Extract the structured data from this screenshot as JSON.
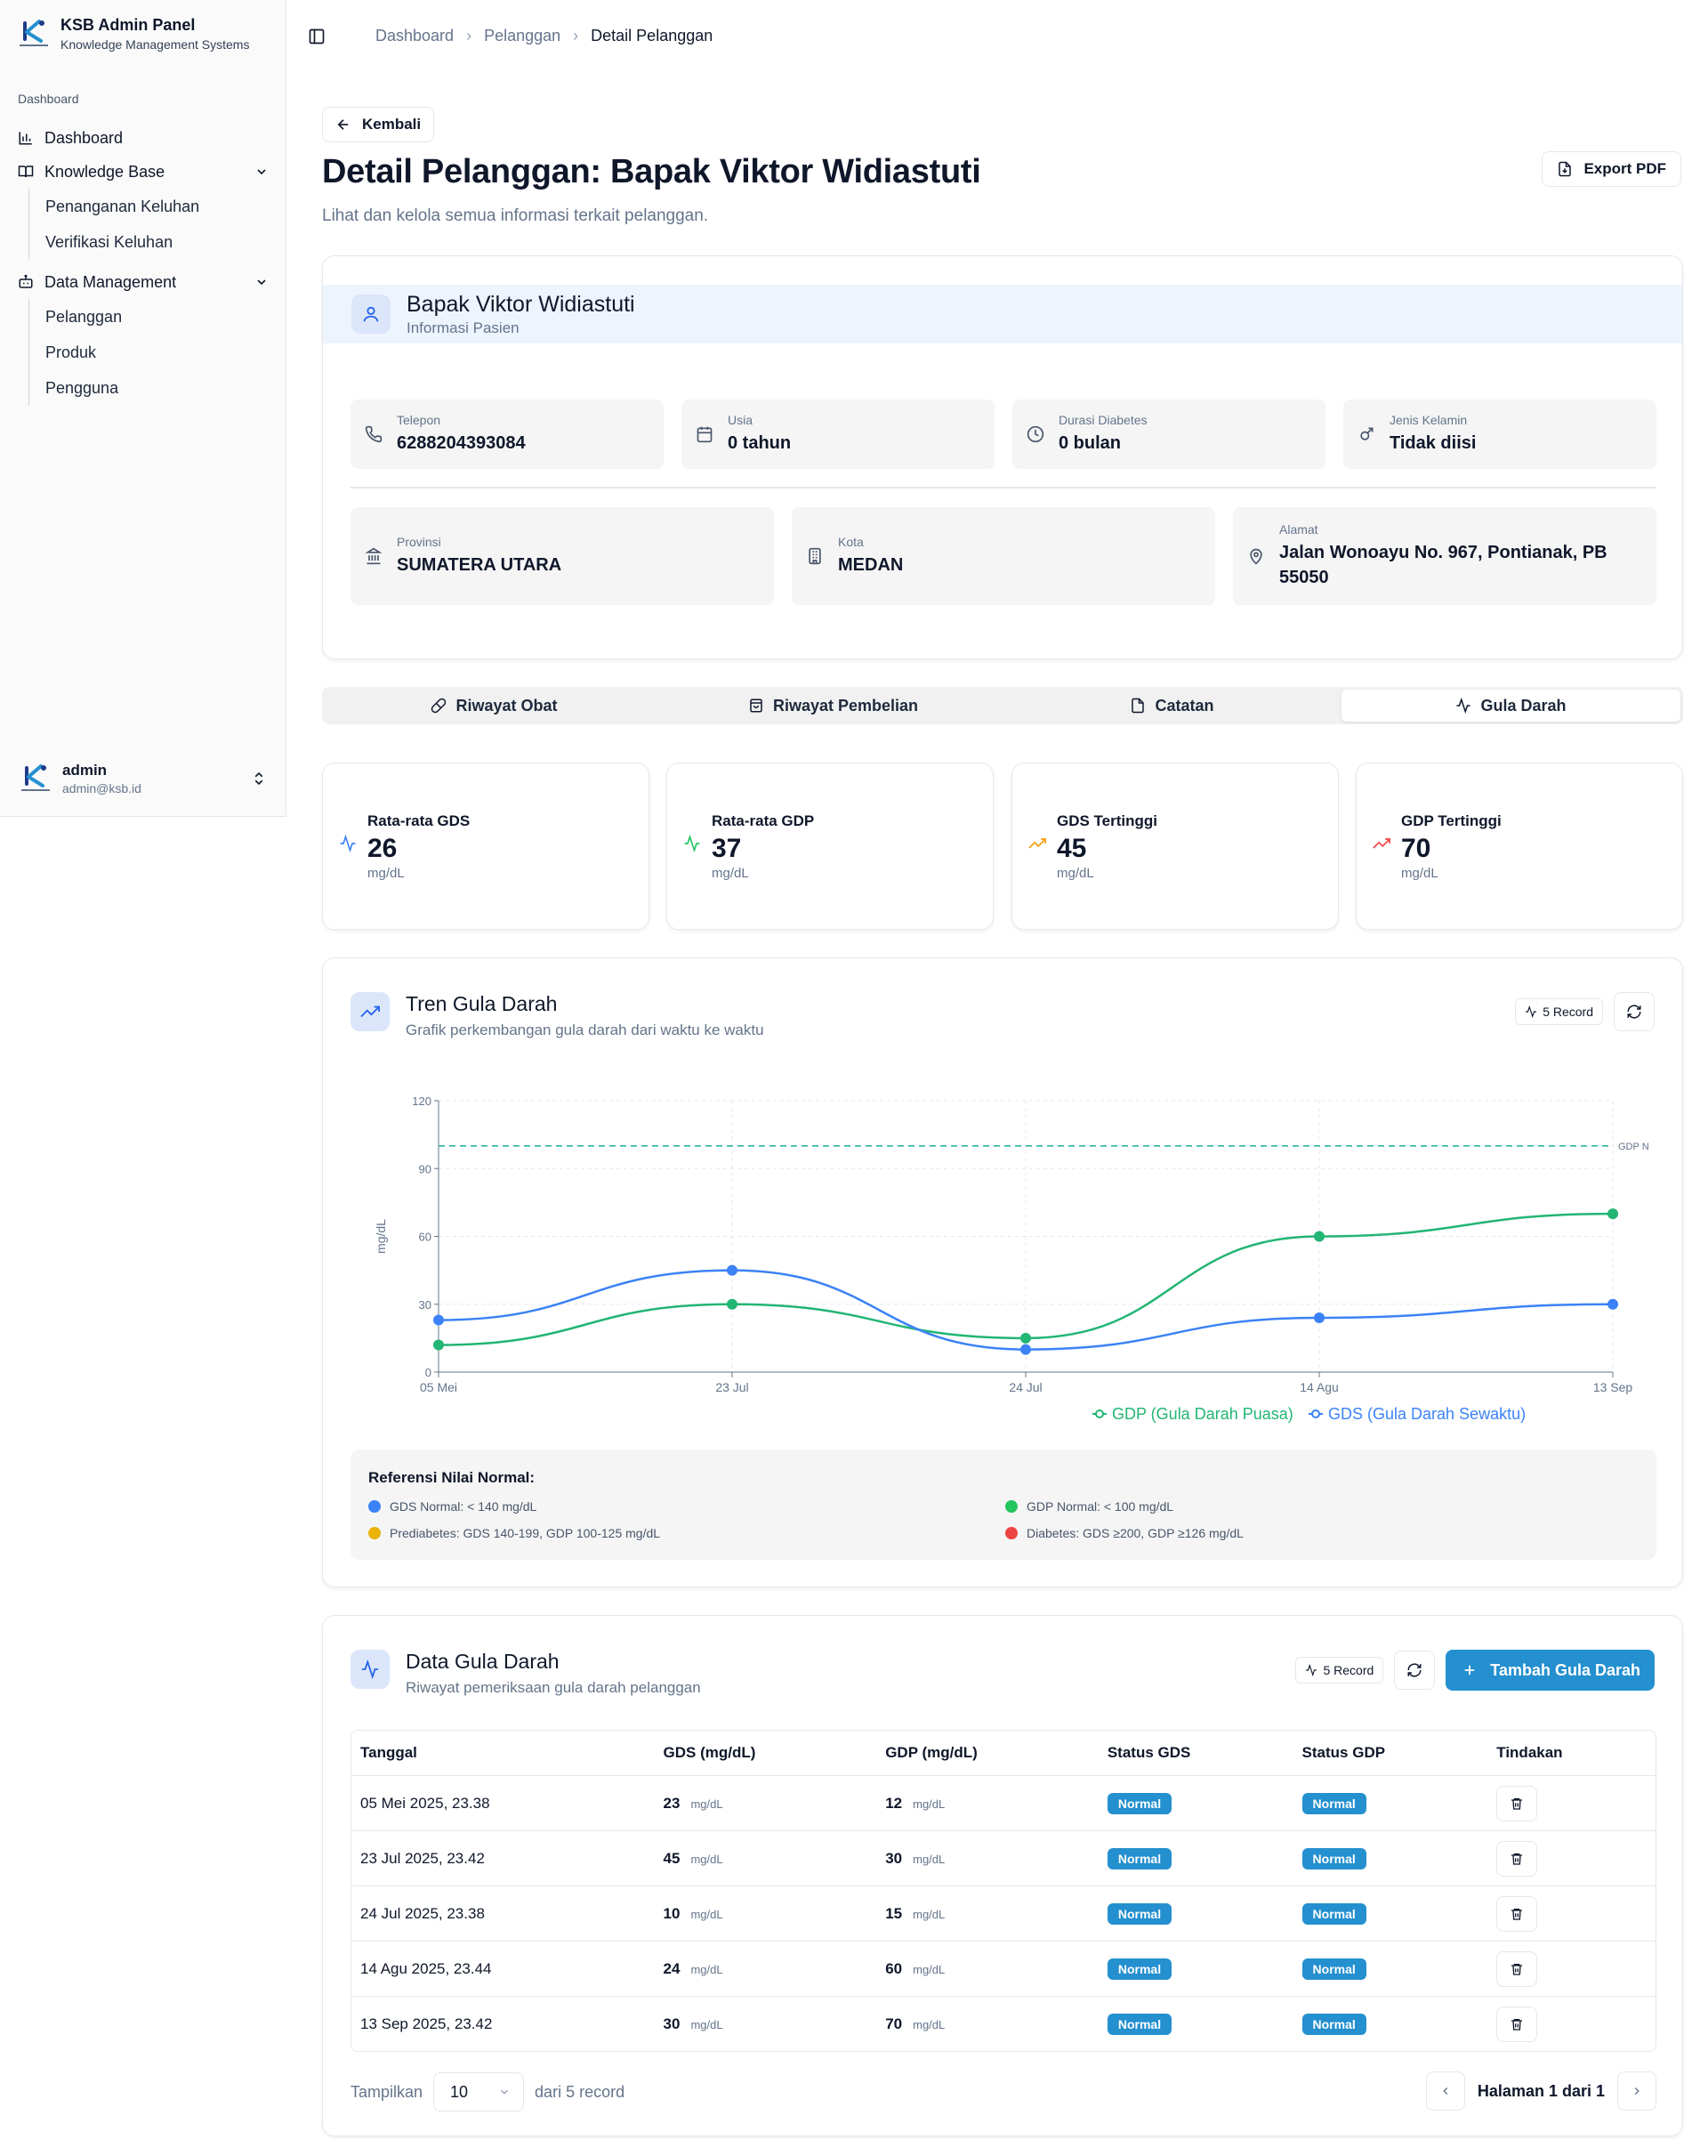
{
  "brand": {
    "title": "KSB Admin Panel",
    "subtitle": "Knowledge Management Systems"
  },
  "sidebar": {
    "group_label": "Dashboard",
    "items": [
      {
        "label": "Dashboard",
        "icon": "bar-chart-icon"
      },
      {
        "label": "Knowledge Base",
        "icon": "book-open-icon",
        "children": [
          "Penanganan Keluhan",
          "Verifikasi Keluhan"
        ]
      },
      {
        "label": "Data Management",
        "icon": "bot-icon",
        "children": [
          "Pelanggan",
          "Produk",
          "Pengguna"
        ]
      }
    ],
    "user": {
      "name": "admin",
      "email": "admin@ksb.id"
    }
  },
  "breadcrumb": [
    "Dashboard",
    "Pelanggan",
    "Detail Pelanggan"
  ],
  "page": {
    "back_label": "Kembali",
    "title": "Detail Pelanggan: Bapak Viktor Widiastuti",
    "subtitle": "Lihat dan kelola semua informasi terkait pelanggan.",
    "export_label": "Export PDF"
  },
  "patient": {
    "name": "Bapak Viktor Widiastuti",
    "subtitle": "Informasi Pasien",
    "telepon": {
      "label": "Telepon",
      "value": "6288204393084"
    },
    "usia": {
      "label": "Usia",
      "value": "0 tahun"
    },
    "durasi": {
      "label": "Durasi Diabetes",
      "value": "0 bulan"
    },
    "kelamin": {
      "label": "Jenis Kelamin",
      "value": "Tidak diisi"
    },
    "provinsi": {
      "label": "Provinsi",
      "value": "SUMATERA UTARA"
    },
    "kota": {
      "label": "Kota",
      "value": "MEDAN"
    },
    "alamat": {
      "label": "Alamat",
      "value": "Jalan Wonoayu No. 967, Pontianak, PB 55050"
    }
  },
  "tabs": [
    {
      "label": "Riwayat Obat",
      "active": false
    },
    {
      "label": "Riwayat Pembelian",
      "active": false
    },
    {
      "label": "Catatan",
      "active": false
    },
    {
      "label": "Gula Darah",
      "active": true
    }
  ],
  "stats": [
    {
      "label": "Rata-rata GDS",
      "value": "26",
      "unit": "mg/dL",
      "color": "#3b82f6"
    },
    {
      "label": "Rata-rata GDP",
      "value": "37",
      "unit": "mg/dL",
      "color": "#22c55e"
    },
    {
      "label": "GDS Tertinggi",
      "value": "45",
      "unit": "mg/dL",
      "color": "#f59e0b"
    },
    {
      "label": "GDP Tertinggi",
      "value": "70",
      "unit": "mg/dL",
      "color": "#ef4444"
    }
  ],
  "trend": {
    "title": "Tren Gula Darah",
    "subtitle": "Grafik perkembangan gula darah dari waktu ke waktu",
    "record_badge": "5 Record"
  },
  "chart_data": {
    "type": "line",
    "x": [
      "05 Mei",
      "23 Jul",
      "24 Jul",
      "14 Agu",
      "13 Sep"
    ],
    "ylabel": "mg/dL",
    "ylim": [
      0,
      120
    ],
    "yticks": [
      0,
      30,
      60,
      90,
      120
    ],
    "grid": true,
    "legend": "bottom",
    "reference_line": {
      "value": 100,
      "label": "GDP N",
      "color": "#22c55e"
    },
    "series": [
      {
        "name": "GDP (Gula Darah Puasa)",
        "values": [
          12,
          30,
          15,
          60,
          70
        ],
        "color": "#22b573"
      },
      {
        "name": "GDS (Gula Darah Sewaktu)",
        "values": [
          23,
          45,
          10,
          24,
          30
        ],
        "color": "#3b82f6"
      }
    ]
  },
  "reference": {
    "title": "Referensi Nilai Normal:",
    "items": [
      {
        "text": "GDS Normal: < 140 mg/dL",
        "color": "#3b82f6"
      },
      {
        "text": "GDP Normal: < 100 mg/dL",
        "color": "#22c55e"
      },
      {
        "text": "Prediabetes: GDS 140-199, GDP 100-125 mg/dL",
        "color": "#eab308"
      },
      {
        "text": "Diabetes: GDS ≥200, GDP ≥126 mg/dL",
        "color": "#ef4444"
      }
    ]
  },
  "table": {
    "title": "Data Gula Darah",
    "subtitle": "Riwayat pemeriksaan gula darah pelanggan",
    "record_badge": "5 Record",
    "add_label": "Tambah Gula Darah",
    "columns": [
      "Tanggal",
      "GDS (mg/dL)",
      "GDP (mg/dL)",
      "Status GDS",
      "Status GDP",
      "Tindakan"
    ],
    "unit": "mg/dL",
    "rows": [
      {
        "tanggal": "05 Mei 2025, 23.38",
        "gds": "23",
        "gdp": "12",
        "status_gds": "Normal",
        "status_gdp": "Normal"
      },
      {
        "tanggal": "23 Jul 2025, 23.42",
        "gds": "45",
        "gdp": "30",
        "status_gds": "Normal",
        "status_gdp": "Normal"
      },
      {
        "tanggal": "24 Jul 2025, 23.38",
        "gds": "10",
        "gdp": "15",
        "status_gds": "Normal",
        "status_gdp": "Normal"
      },
      {
        "tanggal": "14 Agu 2025, 23.44",
        "gds": "24",
        "gdp": "60",
        "status_gds": "Normal",
        "status_gdp": "Normal"
      },
      {
        "tanggal": "13 Sep 2025, 23.42",
        "gds": "30",
        "gdp": "70",
        "status_gds": "Normal",
        "status_gdp": "Normal"
      }
    ],
    "pager": {
      "show_label": "Tampilkan",
      "page_size": "10",
      "total_label": "dari 5 record",
      "page_label": "Halaman 1 dari 1"
    }
  },
  "colors": {
    "accent": "#2490cf",
    "patient_header_bg": "#eef4fe"
  }
}
